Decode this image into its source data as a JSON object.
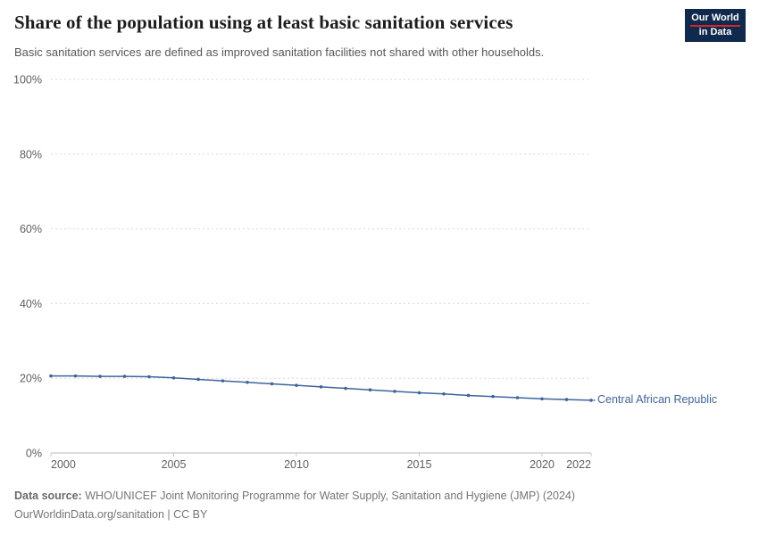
{
  "header": {
    "title": "Share of the population using at least basic sanitation services",
    "subtitle": "Basic sanitation services are defined as improved sanitation facilities not shared with other households."
  },
  "logo": {
    "line1": "Our World",
    "line2": "in Data",
    "bg_color": "#102a4e",
    "accent_color": "#d8232a"
  },
  "chart_data": {
    "type": "line",
    "title": "Share of the population using at least basic sanitation services",
    "xlim": [
      2000,
      2022
    ],
    "ylim": [
      0,
      100
    ],
    "grid": "horizontal-dashed",
    "legend_position": "end-of-line-label",
    "x_ticks": [
      {
        "value": 2000,
        "label": "2000"
      },
      {
        "value": 2005,
        "label": "2005"
      },
      {
        "value": 2010,
        "label": "2010"
      },
      {
        "value": 2015,
        "label": "2015"
      },
      {
        "value": 2020,
        "label": "2020"
      },
      {
        "value": 2022,
        "label": "2022"
      }
    ],
    "y_ticks": [
      {
        "value": 0,
        "label": "0%"
      },
      {
        "value": 20,
        "label": "20%"
      },
      {
        "value": 40,
        "label": "40%"
      },
      {
        "value": 60,
        "label": "60%"
      },
      {
        "value": 80,
        "label": "80%"
      },
      {
        "value": 100,
        "label": "100%"
      }
    ],
    "series": [
      {
        "name": "Central African Republic",
        "color": "#3d649c",
        "x": [
          2000,
          2001,
          2002,
          2003,
          2004,
          2005,
          2006,
          2007,
          2008,
          2009,
          2010,
          2011,
          2012,
          2013,
          2014,
          2015,
          2016,
          2017,
          2018,
          2019,
          2020,
          2021,
          2022
        ],
        "values": [
          20.6,
          20.6,
          20.5,
          20.5,
          20.4,
          20.1,
          19.7,
          19.3,
          18.9,
          18.5,
          18.1,
          17.7,
          17.3,
          16.9,
          16.5,
          16.1,
          15.8,
          15.4,
          15.1,
          14.8,
          14.5,
          14.3,
          14.1
        ]
      }
    ]
  },
  "footer": {
    "source_label": "Data source:",
    "source_text": "WHO/UNICEF Joint Monitoring Programme for Water Supply, Sanitation and Hygiene (JMP) (2024)",
    "permalink": "OurWorldinData.org/sanitation | CC BY"
  }
}
